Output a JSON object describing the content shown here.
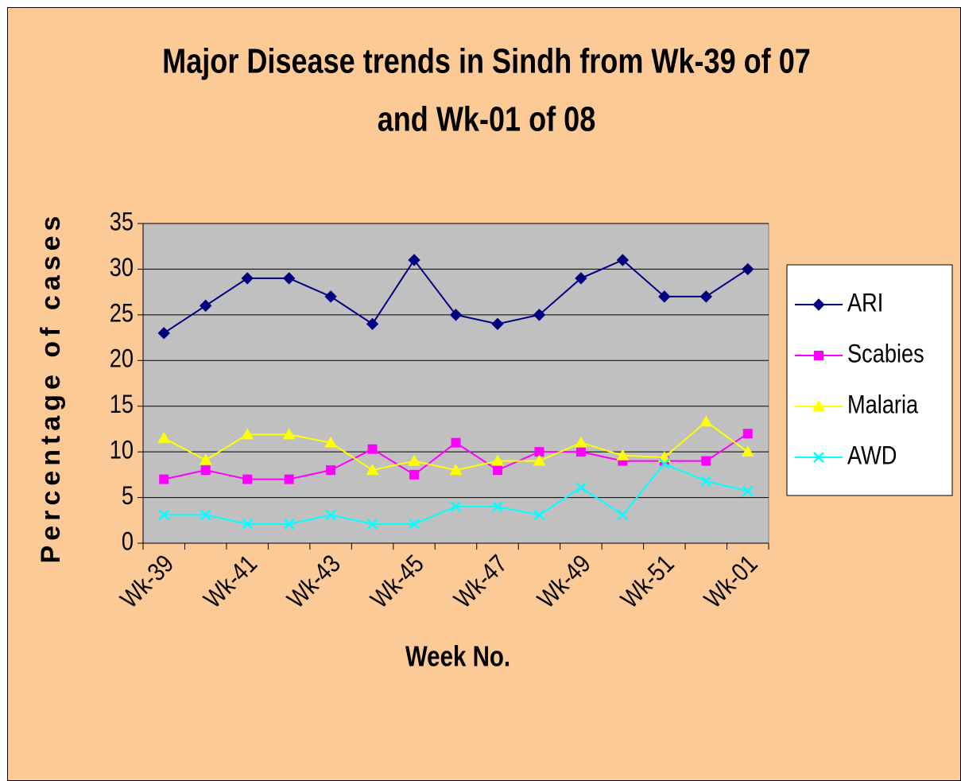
{
  "chart_data": {
    "type": "line",
    "title": [
      "Major Disease trends in Sindh from Wk-39 of 07",
      "and Wk-01 of 08"
    ],
    "xlabel": "Week No.",
    "ylabel": "Percentage of cases",
    "categories": [
      "Wk-39",
      null,
      "Wk-41",
      null,
      "Wk-43",
      null,
      "Wk-45",
      null,
      "Wk-47",
      null,
      "Wk-49",
      null,
      "Wk-51",
      null,
      "Wk-01"
    ],
    "series": [
      {
        "name": "ARI",
        "color": "#000080",
        "marker": "diamond",
        "values": [
          23,
          26,
          29,
          29,
          27,
          24,
          31,
          25,
          24,
          25,
          29,
          31,
          27,
          27,
          30
        ]
      },
      {
        "name": "Scabies",
        "color": "#ff00ff",
        "marker": "square",
        "values": [
          7,
          8,
          7,
          7,
          8,
          10.3,
          7.5,
          11,
          8,
          10,
          10,
          9,
          9,
          9,
          12
        ]
      },
      {
        "name": "Malaria",
        "color": "#ffff00",
        "marker": "triangle",
        "values": [
          11.5,
          9.1,
          11.9,
          11.9,
          11,
          8,
          9,
          8,
          9,
          9,
          11,
          9.6,
          9.4,
          13.3,
          10
        ]
      },
      {
        "name": "AWD",
        "color": "#00ffff",
        "marker": "x",
        "values": [
          3.1,
          3.1,
          2.1,
          2.1,
          3.1,
          2.1,
          2.1,
          4,
          4,
          3.1,
          6.1,
          3.1,
          8.7,
          6.8,
          5.7
        ]
      }
    ],
    "ylim": [
      0,
      35
    ],
    "yticks": [
      0,
      5,
      10,
      15,
      20,
      25,
      30,
      35
    ],
    "grid": true,
    "legend": "right"
  }
}
